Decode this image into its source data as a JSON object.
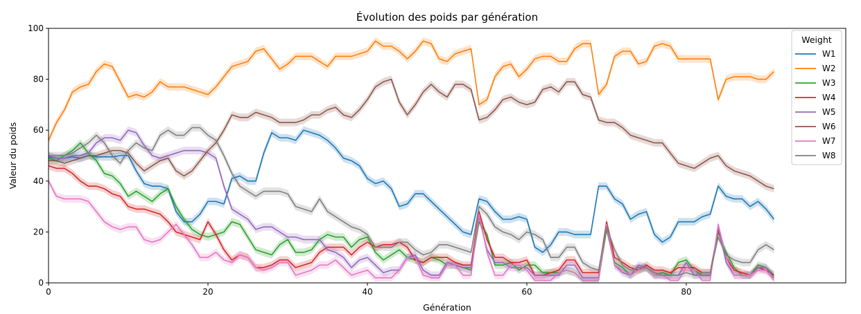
{
  "chart_data": {
    "type": "line",
    "title": "Évolution des poids par génération",
    "xlabel": "Génération",
    "ylabel": "Valeur du poids",
    "xlim": [
      0,
      100
    ],
    "ylim": [
      0,
      100
    ],
    "xticks": [
      0,
      20,
      40,
      60,
      80
    ],
    "yticks": [
      0,
      20,
      40,
      60,
      80,
      100
    ],
    "grid": false,
    "legend": {
      "title": "Weight",
      "placement": "top-right"
    },
    "band_halfwidth": 1.5,
    "x": [
      0,
      1,
      2,
      3,
      4,
      5,
      6,
      7,
      8,
      9,
      10,
      11,
      12,
      13,
      14,
      15,
      16,
      17,
      18,
      19,
      20,
      21,
      22,
      23,
      24,
      25,
      26,
      27,
      28,
      29,
      30,
      31,
      32,
      33,
      34,
      35,
      36,
      37,
      38,
      39,
      40,
      41,
      42,
      43,
      44,
      45,
      46,
      47,
      48,
      49,
      50,
      51,
      52,
      53,
      54,
      55,
      56,
      57,
      58,
      59,
      60,
      61,
      62,
      63,
      64,
      65,
      66,
      67,
      68,
      69,
      70,
      71,
      72,
      73,
      74,
      75,
      76,
      77,
      78,
      79,
      80,
      81,
      82,
      83,
      84,
      85,
      86,
      87,
      88,
      89,
      90,
      91
    ],
    "series": [
      {
        "name": "W1",
        "color": "#1f77b4",
        "values": [
          49.5,
          49,
          49,
          49.5,
          49,
          50,
          49.5,
          49.5,
          49.5,
          50,
          50,
          44,
          39,
          38,
          38,
          37,
          28,
          24,
          24,
          27,
          32,
          32,
          31,
          41,
          42,
          40,
          40,
          51,
          59,
          57,
          57,
          56,
          60,
          59,
          58,
          56,
          53,
          49,
          48,
          46,
          41,
          39,
          40,
          37,
          30,
          31,
          35,
          35,
          32,
          29,
          26,
          23,
          20,
          19,
          33,
          32,
          28,
          25,
          25,
          26,
          25,
          14,
          12,
          15,
          20,
          20,
          19,
          19,
          19,
          38,
          38,
          33,
          31,
          25,
          27,
          28,
          19,
          16,
          18,
          24,
          24,
          24,
          26,
          27,
          38,
          34,
          33,
          33,
          30,
          32,
          29,
          25
        ]
      },
      {
        "name": "W2",
        "color": "#ff7f0e",
        "values": [
          56,
          63,
          68,
          75,
          77,
          78,
          83,
          86,
          85,
          79,
          73,
          74,
          73,
          75,
          79,
          77,
          77,
          77,
          76,
          75,
          74,
          77,
          81,
          85,
          86,
          87,
          91,
          92,
          88,
          84,
          86,
          89,
          89,
          89,
          87,
          85,
          89,
          89,
          89,
          90,
          91,
          95,
          93,
          93,
          91,
          88,
          91,
          95,
          94,
          88,
          87,
          90,
          91,
          92,
          70,
          72,
          81,
          85,
          86,
          81,
          84,
          88,
          89,
          89,
          87,
          87,
          92,
          94,
          94,
          74,
          78,
          89,
          91,
          91,
          86,
          87,
          93,
          94,
          93,
          88,
          88,
          88,
          88,
          88,
          72,
          80,
          81,
          81,
          81,
          80,
          80,
          83
        ]
      },
      {
        "name": "W3",
        "color": "#2ca02c",
        "values": [
          49,
          48,
          50,
          52,
          55,
          51,
          48,
          43,
          42,
          39,
          34,
          36,
          34,
          32,
          35,
          37,
          30,
          25,
          21,
          19,
          18,
          19,
          20,
          24,
          23,
          18,
          13,
          12,
          11,
          15,
          17,
          12,
          12,
          13,
          17,
          19,
          18,
          18,
          14,
          17,
          18,
          12,
          9,
          11,
          13,
          10,
          9,
          8,
          10,
          9,
          7,
          7,
          6,
          5,
          24,
          19,
          7,
          7,
          8,
          5,
          7,
          7,
          4,
          4,
          4,
          5,
          4,
          1,
          1,
          1,
          21,
          8,
          6,
          3,
          5,
          6,
          3,
          4,
          3,
          8,
          9,
          5,
          3,
          3,
          20,
          12,
          6,
          3,
          3,
          7,
          6,
          3
        ]
      },
      {
        "name": "W4",
        "color": "#d62728",
        "values": [
          46,
          45,
          45,
          43,
          40,
          38,
          38,
          37,
          35,
          34,
          30,
          29,
          29,
          28,
          27,
          24,
          20,
          19,
          18,
          17,
          24,
          19,
          13,
          9,
          11,
          10,
          6,
          6,
          7,
          9,
          9,
          6,
          7,
          8,
          12,
          14,
          14,
          14,
          11,
          14,
          16,
          14,
          15,
          15,
          16,
          14,
          9,
          8,
          10,
          10,
          10,
          8,
          7,
          7,
          28,
          17,
          10,
          10,
          8,
          8,
          9,
          3,
          3,
          4,
          5,
          9,
          9,
          4,
          4,
          4,
          24,
          10,
          8,
          6,
          5,
          7,
          5,
          5,
          4,
          6,
          6,
          6,
          4,
          4,
          21,
          10,
          5,
          4,
          3,
          6,
          5,
          3
        ]
      },
      {
        "name": "W5",
        "color": "#9467bd",
        "values": [
          50,
          49,
          49,
          50,
          50,
          51,
          55,
          57,
          57,
          56,
          60,
          59,
          54,
          50,
          49,
          50,
          51,
          52,
          52,
          52,
          51,
          49,
          38,
          29,
          27,
          25,
          21,
          22,
          22,
          20,
          18,
          18,
          17,
          17,
          17,
          13,
          12,
          10,
          6,
          9,
          10,
          7,
          4,
          5,
          5,
          10,
          11,
          5,
          3,
          3,
          8,
          7,
          6,
          6,
          26,
          13,
          8,
          8,
          6,
          6,
          6,
          3,
          3,
          3,
          3,
          7,
          7,
          2,
          2,
          2,
          22,
          7,
          4,
          3,
          7,
          6,
          3,
          3,
          3,
          3,
          8,
          3,
          3,
          3,
          22,
          8,
          3,
          3,
          3,
          6,
          6,
          2
        ]
      },
      {
        "name": "W6",
        "color": "#8c564b",
        "values": [
          48,
          48,
          47,
          48,
          49,
          50,
          50,
          51,
          52,
          52,
          51,
          47,
          44,
          46,
          48,
          49,
          44,
          42,
          44,
          48,
          52,
          55,
          60,
          66,
          65,
          65,
          67,
          66,
          65,
          63,
          63,
          63,
          64,
          66,
          66,
          68,
          69,
          66,
          65,
          68,
          72,
          77,
          79,
          80,
          71,
          66,
          70,
          75,
          78,
          75,
          73,
          78,
          78,
          76,
          64,
          65,
          68,
          72,
          73,
          71,
          70,
          71,
          76,
          77,
          75,
          79,
          79,
          74,
          73,
          64,
          63,
          63,
          61,
          58,
          57,
          56,
          55,
          55,
          51,
          47,
          46,
          45,
          47,
          49,
          50,
          46,
          44,
          43,
          42,
          40,
          38,
          37
        ]
      },
      {
        "name": "W7",
        "color": "#e377c2",
        "values": [
          40,
          34,
          33,
          33,
          33,
          32,
          28,
          24,
          22,
          21,
          22,
          22,
          17,
          16,
          17,
          20,
          23,
          19,
          15,
          10,
          10,
          12,
          9,
          8,
          11,
          10,
          6,
          5,
          6,
          8,
          8,
          3,
          4,
          5,
          7,
          7,
          9,
          6,
          3,
          4,
          5,
          2,
          2,
          2,
          5,
          10,
          10,
          3,
          2,
          2,
          7,
          7,
          3,
          3,
          27,
          12,
          3,
          3,
          7,
          7,
          5,
          1,
          1,
          1,
          4,
          5,
          4,
          1,
          1,
          1,
          23,
          7,
          5,
          3,
          5,
          6,
          3,
          3,
          1,
          1,
          6,
          5,
          1,
          1,
          23,
          10,
          3,
          3,
          3,
          5,
          5,
          1
        ]
      },
      {
        "name": "W8",
        "color": "#7f7f7f",
        "values": [
          50,
          50,
          50,
          51,
          53,
          55,
          58,
          55,
          50,
          47,
          52,
          55,
          53,
          52,
          58,
          60,
          58,
          58,
          61,
          61,
          58,
          56,
          50,
          43,
          38,
          36,
          34,
          36,
          36,
          36,
          35,
          30,
          29,
          28,
          33,
          28,
          26,
          24,
          22,
          21,
          19,
          14,
          14,
          14,
          16,
          16,
          13,
          11,
          12,
          15,
          15,
          14,
          13,
          12,
          30,
          27,
          22,
          20,
          19,
          17,
          20,
          19,
          17,
          10,
          10,
          14,
          14,
          8,
          6,
          5,
          22,
          13,
          7,
          5,
          6,
          6,
          4,
          3,
          3,
          3,
          4,
          3,
          4,
          4,
          18,
          11,
          9,
          8,
          8,
          13,
          15,
          13
        ]
      }
    ]
  }
}
